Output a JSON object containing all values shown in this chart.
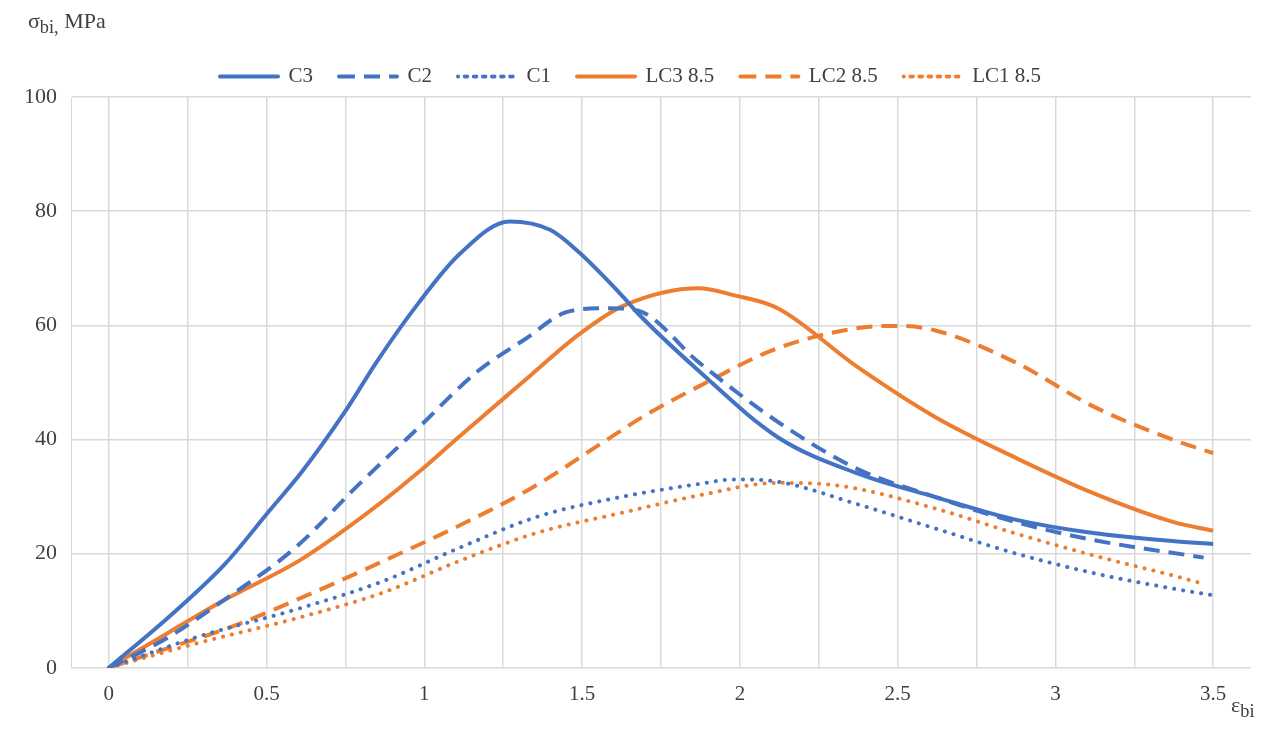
{
  "chart_data": {
    "type": "line",
    "ylabel": "σ$_{bi,}$ MPa",
    "xlabel": "ε$_{bi}$",
    "xlim": [
      -0.12,
      3.62
    ],
    "ylim": [
      0,
      100
    ],
    "xticks": [
      0,
      {
        "value": 0.25,
        "label": null
      },
      0.5,
      {
        "value": 0.75,
        "label": null
      },
      1,
      {
        "value": 1.25,
        "label": null
      },
      1.5,
      {
        "value": 1.75,
        "label": null
      },
      2,
      {
        "value": 2.25,
        "label": null
      },
      2.5,
      {
        "value": 2.75,
        "label": null
      },
      3,
      {
        "value": 3.25,
        "label": null
      },
      3.5
    ],
    "yticks": [
      0,
      20,
      40,
      60,
      80,
      100
    ],
    "grid": true,
    "legend": "top",
    "marker": "none",
    "series": [
      {
        "name": "C3",
        "color": "#4472c4",
        "line_style": "solid",
        "x": [
          0,
          0.19,
          0.37,
          0.51,
          0.61,
          0.75,
          0.85,
          0.98,
          1.11,
          1.27,
          1.4,
          1.49,
          1.63,
          1.675,
          1.87,
          2.12,
          2.37,
          2.62,
          2.87,
          3.12,
          3.37,
          3.5
        ],
        "values": [
          0,
          8.9,
          18.3,
          27.6,
          34.2,
          45,
          53.7,
          63.8,
          72.4,
          78.2,
          76.7,
          72.8,
          65,
          62.2,
          52,
          40.4,
          34.1,
          29.9,
          26,
          23.6,
          22.2,
          21.7
        ]
      },
      {
        "name": "C2",
        "color": "#4472c4",
        "line_style": "dashed",
        "x": [
          0,
          0.19,
          0.36,
          0.59,
          0.79,
          0.98,
          1.17,
          1.32,
          1.45,
          1.58,
          1.675,
          1.87,
          2.12,
          2.37,
          2.62,
          2.87,
          3.12,
          3.47
        ],
        "values": [
          0,
          5.4,
          11.7,
          21,
          32,
          42,
          52,
          57.6,
          62.3,
          63,
          62.6,
          53.5,
          43.1,
          34.9,
          29.9,
          25.6,
          22.4,
          19.3
        ]
      },
      {
        "name": "C1",
        "color": "#4472c4",
        "line_style": "dotted",
        "x": [
          0,
          0.28,
          0.61,
          0.87,
          1.11,
          1.36,
          1.63,
          1.87,
          1.98,
          2.12,
          2.37,
          2.62,
          2.87,
          3.12,
          3.37,
          3.5
        ],
        "values": [
          0,
          5.4,
          10.5,
          15.2,
          21,
          26.5,
          30,
          32.2,
          33,
          32.6,
          28.7,
          24.4,
          20.1,
          16.6,
          13.9,
          12.7
        ]
      },
      {
        "name": "LC3 8.5",
        "color": "#ed7d31",
        "line_style": "solid",
        "x": [
          0,
          0.19,
          0.36,
          0.61,
          0.85,
          0.98,
          1.1,
          1.34,
          1.49,
          1.63,
          1.87,
          1.98,
          2.12,
          2.37,
          2.62,
          2.87,
          3.12,
          3.37,
          3.5
        ],
        "values": [
          0,
          6.2,
          11.7,
          19,
          28.4,
          34.2,
          40,
          51.4,
          58.4,
          63.4,
          66.5,
          65.3,
          63,
          52.8,
          43.9,
          36.9,
          30.6,
          25.6,
          24
        ]
      },
      {
        "name": "LC2 8.5",
        "color": "#ed7d31",
        "line_style": "dashed",
        "x": [
          0,
          0.19,
          0.38,
          0.62,
          0.87,
          1.11,
          1.34,
          1.58,
          1.69,
          1.87,
          2.12,
          2.37,
          2.5,
          2.62,
          2.87,
          3.12,
          3.37,
          3.5
        ],
        "values": [
          0,
          3.5,
          7,
          12.5,
          18.7,
          24.9,
          31.5,
          40,
          43.9,
          49.3,
          56,
          59.5,
          59.9,
          59.1,
          53.6,
          45.8,
          40,
          37.6
        ]
      },
      {
        "name": "LC1 8.5",
        "color": "#ed7d31",
        "line_style": "dotted",
        "x": [
          0,
          0.28,
          0.61,
          0.87,
          1.11,
          1.36,
          1.63,
          1.87,
          2.12,
          2.26,
          2.37,
          2.62,
          2.87,
          3.12,
          3.37,
          3.47
        ],
        "values": [
          0,
          4.3,
          8.9,
          13.2,
          18.7,
          23.7,
          27.2,
          30.2,
          32.4,
          32.2,
          31.4,
          27.9,
          23.6,
          19.7,
          16.2,
          14.7
        ]
      }
    ]
  }
}
